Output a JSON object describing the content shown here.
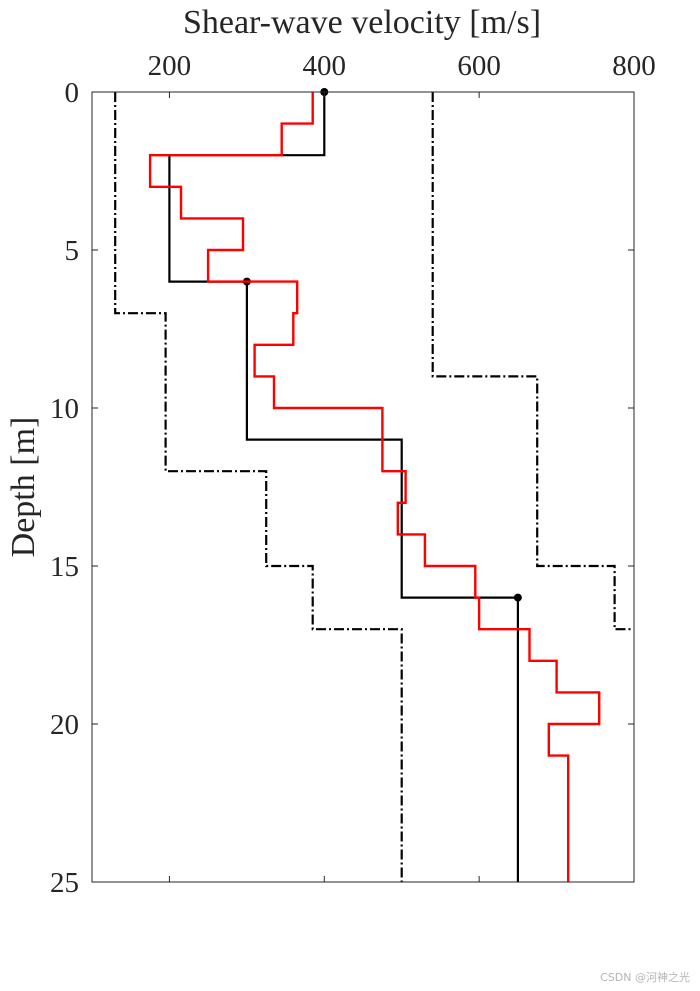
{
  "chart_data": {
    "type": "line",
    "title": "",
    "xlabel": "Shear-wave velocity [m/s]",
    "ylabel": "Depth [m]",
    "xlim": [
      100,
      800
    ],
    "ylim": [
      0,
      25
    ],
    "y_reversed": true,
    "x_axis_position": "top",
    "x_ticks": [
      200,
      400,
      600,
      800
    ],
    "y_ticks": [
      0,
      5,
      10,
      15,
      20,
      25
    ],
    "x_tick_labels": [
      "200",
      "400",
      "600",
      "800"
    ],
    "y_tick_labels": [
      "0",
      "5",
      "10",
      "15",
      "20",
      "25"
    ],
    "grid": false,
    "legend": "none",
    "series": [
      {
        "color": "#000000",
        "style": "dash-dot",
        "kind": "lower-bound",
        "points": [
          [
            130,
            0
          ],
          [
            130,
            7
          ],
          [
            195,
            7
          ],
          [
            195,
            12
          ],
          [
            325,
            12
          ],
          [
            325,
            15
          ],
          [
            385,
            15
          ],
          [
            385,
            17
          ],
          [
            500,
            17
          ],
          [
            500,
            25
          ]
        ]
      },
      {
        "color": "#000000",
        "style": "dash-dot",
        "kind": "upper-bound",
        "points": [
          [
            540,
            0
          ],
          [
            540,
            9
          ],
          [
            675,
            9
          ],
          [
            675,
            15
          ],
          [
            775,
            15
          ],
          [
            775,
            17
          ],
          [
            800,
            17
          ]
        ]
      },
      {
        "color": "#000000",
        "style": "solid",
        "kind": "true-profile",
        "points": [
          [
            400,
            0
          ],
          [
            400,
            2
          ],
          [
            200,
            2
          ],
          [
            200,
            6
          ],
          [
            300,
            6
          ],
          [
            300,
            11
          ],
          [
            500,
            11
          ],
          [
            500,
            16
          ],
          [
            650,
            16
          ],
          [
            650,
            25
          ]
        ],
        "markers": [
          [
            400,
            0
          ],
          [
            300,
            6
          ],
          [
            650,
            16
          ]
        ]
      },
      {
        "color": "#ff0000",
        "style": "solid",
        "kind": "estimated-profile",
        "points": [
          [
            385,
            0
          ],
          [
            385,
            1
          ],
          [
            345,
            1
          ],
          [
            345,
            2
          ],
          [
            175,
            2
          ],
          [
            175,
            3
          ],
          [
            215,
            3
          ],
          [
            215,
            4
          ],
          [
            295,
            4
          ],
          [
            295,
            5
          ],
          [
            250,
            5
          ],
          [
            250,
            6
          ],
          [
            365,
            6
          ],
          [
            365,
            7
          ],
          [
            360,
            7
          ],
          [
            360,
            8
          ],
          [
            310,
            8
          ],
          [
            310,
            9
          ],
          [
            335,
            9
          ],
          [
            335,
            10
          ],
          [
            475,
            10
          ],
          [
            475,
            12
          ],
          [
            505,
            12
          ],
          [
            505,
            13
          ],
          [
            495,
            13
          ],
          [
            495,
            14
          ],
          [
            530,
            14
          ],
          [
            530,
            15
          ],
          [
            595,
            15
          ],
          [
            595,
            16
          ],
          [
            600,
            16
          ],
          [
            600,
            17
          ],
          [
            665,
            17
          ],
          [
            665,
            18
          ],
          [
            700,
            18
          ],
          [
            700,
            19
          ],
          [
            755,
            19
          ],
          [
            755,
            20
          ],
          [
            690,
            20
          ],
          [
            690,
            21
          ],
          [
            715,
            21
          ],
          [
            715,
            25
          ]
        ]
      }
    ]
  },
  "watermark": "CSDN @河神之光"
}
